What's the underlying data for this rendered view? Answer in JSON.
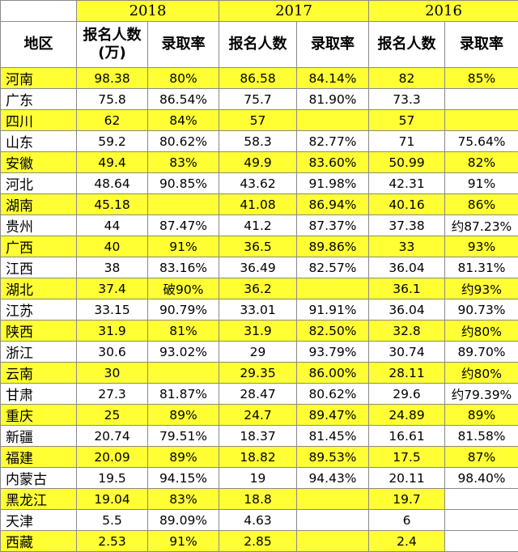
{
  "years": [
    "2018",
    "2017",
    "2016"
  ],
  "headers": {
    "region": "地区",
    "applicants_2018_line1": "报名人数",
    "applicants_2018_line2": "(万)",
    "rate": "录取率",
    "applicants": "报名人数"
  },
  "rows": [
    {
      "region": "河南",
      "a2018": "98.38",
      "r2018": "80%",
      "a2017": "86.58",
      "r2017": "84.14%",
      "a2016": "82",
      "r2016": "85%",
      "highlight": true
    },
    {
      "region": "广东",
      "a2018": "75.8",
      "r2018": "86.54%",
      "a2017": "75.7",
      "r2017": "81.90%",
      "a2016": "73.3",
      "r2016": "",
      "highlight": false
    },
    {
      "region": "四川",
      "a2018": "62",
      "r2018": "84%",
      "a2017": "57",
      "r2017": "",
      "a2016": "57",
      "r2016": "",
      "highlight": true
    },
    {
      "region": "山东",
      "a2018": "59.2",
      "r2018": "80.62%",
      "a2017": "58.3",
      "r2017": "82.77%",
      "a2016": "71",
      "r2016": "75.64%",
      "highlight": false
    },
    {
      "region": "安徽",
      "a2018": "49.4",
      "r2018": "83%",
      "a2017": "49.9",
      "r2017": "83.60%",
      "a2016": "50.99",
      "r2016": "82%",
      "highlight": true
    },
    {
      "region": "河北",
      "a2018": "48.64",
      "r2018": "90.85%",
      "a2017": "43.62",
      "r2017": "91.98%",
      "a2016": "42.31",
      "r2016": "91%",
      "highlight": false
    },
    {
      "region": "湖南",
      "a2018": "45.18",
      "r2018": "",
      "a2017": "41.08",
      "r2017": "86.94%",
      "a2016": "40.16",
      "r2016": "86%",
      "highlight": true
    },
    {
      "region": "贵州",
      "a2018": "44",
      "r2018": "87.47%",
      "a2017": "41.2",
      "r2017": "87.37%",
      "a2016": "37.38",
      "r2016": "约87.23%",
      "highlight": false
    },
    {
      "region": "广西",
      "a2018": "40",
      "r2018": "91%",
      "a2017": "36.5",
      "r2017": "89.86%",
      "a2016": "33",
      "r2016": "93%",
      "highlight": true
    },
    {
      "region": "江西",
      "a2018": "38",
      "r2018": "83.16%",
      "a2017": "36.49",
      "r2017": "82.57%",
      "a2016": "36.04",
      "r2016": "81.31%",
      "highlight": false
    },
    {
      "region": "湖北",
      "a2018": "37.4",
      "r2018": "破90%",
      "a2017": "36.2",
      "r2017": "",
      "a2016": "36.1",
      "r2016": "约93%",
      "highlight": true
    },
    {
      "region": "江苏",
      "a2018": "33.15",
      "r2018": "90.79%",
      "a2017": "33.01",
      "r2017": "91.91%",
      "a2016": "36.04",
      "r2016": "90.73%",
      "highlight": false
    },
    {
      "region": "陕西",
      "a2018": "31.9",
      "r2018": "81%",
      "a2017": "31.9",
      "r2017": "82.50%",
      "a2016": "32.8",
      "r2016": "约80%",
      "highlight": true
    },
    {
      "region": "浙江",
      "a2018": "30.6",
      "r2018": "93.02%",
      "a2017": "29",
      "r2017": "93.79%",
      "a2016": "30.74",
      "r2016": "89.70%",
      "highlight": false
    },
    {
      "region": "云南",
      "a2018": "30",
      "r2018": "",
      "a2017": "29.35",
      "r2017": "86.00%",
      "a2016": "28.11",
      "r2016": "约80%",
      "highlight": true
    },
    {
      "region": "甘肃",
      "a2018": "27.3",
      "r2018": "81.87%",
      "a2017": "28.47",
      "r2017": "80.62%",
      "a2016": "29.6",
      "r2016": "约79.39%",
      "highlight": false
    },
    {
      "region": "重庆",
      "a2018": "25",
      "r2018": "89%",
      "a2017": "24.7",
      "r2017": "89.47%",
      "a2016": "24.89",
      "r2016": "89%",
      "highlight": true
    },
    {
      "region": "新疆",
      "a2018": "20.74",
      "r2018": "79.51%",
      "a2017": "18.37",
      "r2017": "81.45%",
      "a2016": "16.61",
      "r2016": "81.58%",
      "highlight": false
    },
    {
      "region": "福建",
      "a2018": "20.09",
      "r2018": "89%",
      "a2017": "18.82",
      "r2017": "89.53%",
      "a2016": "17.5",
      "r2016": "87%",
      "highlight": true
    },
    {
      "region": "内蒙古",
      "a2018": "19.5",
      "r2018": "94.15%",
      "a2017": "19",
      "r2017": "94.43%",
      "a2016": "20.11",
      "r2016": "98.40%",
      "highlight": false
    },
    {
      "region": "黑龙江",
      "a2018": "19.04",
      "r2018": "83%",
      "a2017": "18.8",
      "r2017": "",
      "a2016": "19.7",
      "r2016": "",
      "highlight": true
    },
    {
      "region": "天津",
      "a2018": "5.5",
      "r2018": "89.09%",
      "a2017": "4.63",
      "r2017": "",
      "a2016": "6",
      "r2016": "",
      "highlight": false
    },
    {
      "region": "西藏",
      "a2018": "2.53",
      "r2018": "91%",
      "a2017": "2.85",
      "r2017": "",
      "a2016": "2.4",
      "r2016": "",
      "highlight": true
    }
  ]
}
